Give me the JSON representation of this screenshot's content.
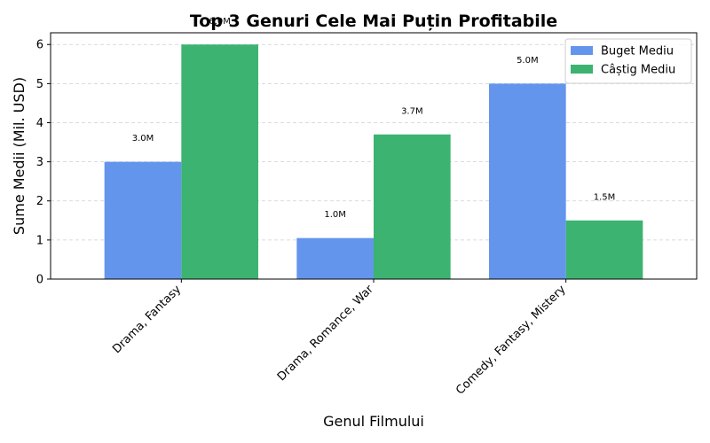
{
  "chart_data": {
    "type": "bar",
    "title": "Top 3 Genuri Cele Mai Puțin Profitabile",
    "xlabel": "Genul Filmului",
    "ylabel": "Sume Medii (Mil. USD)",
    "categories": [
      "Drama, Fantasy",
      "Drama, Romance, War",
      "Comedy, Fantasy, Mistery"
    ],
    "ylim": [
      0,
      6.3
    ],
    "yticks": [
      0,
      1,
      2,
      3,
      4,
      5,
      6
    ],
    "grid": "y-dashed",
    "legend_position": "top-right",
    "series": [
      {
        "name": "Buget Mediu",
        "color": "#6495ED",
        "values": [
          3.0,
          1.05,
          5.0
        ],
        "labels": [
          "3.0M",
          "1.0M",
          "5.0M"
        ]
      },
      {
        "name": "Câștig Mediu",
        "color": "#3CB371",
        "values": [
          6.0,
          3.7,
          1.5
        ],
        "labels": [
          "6.0M",
          "3.7M",
          "1.5M"
        ]
      }
    ]
  }
}
